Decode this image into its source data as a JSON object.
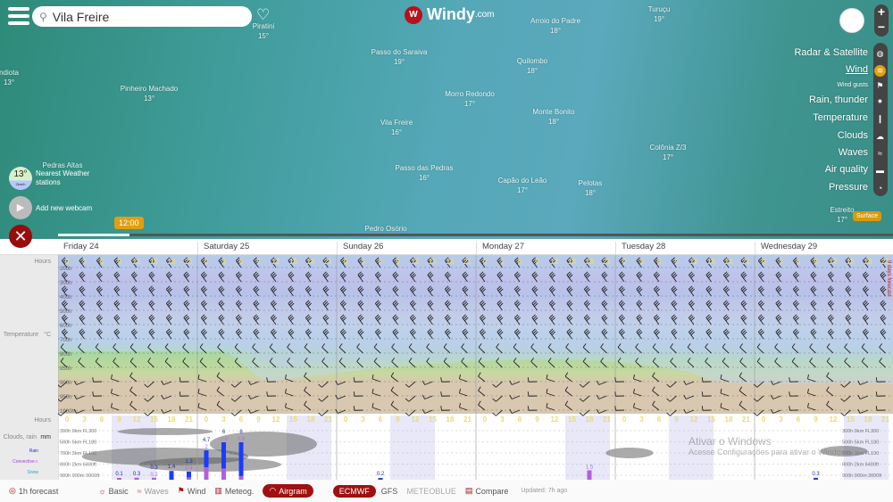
{
  "search": {
    "value": "Vila Freire"
  },
  "logo": {
    "text": "Windy",
    "suffix": ".com"
  },
  "map": {
    "cities": [
      {
        "name": "Piratini",
        "temp": "15°"
      },
      {
        "name": "Arroio do Padre",
        "temp": "18°"
      },
      {
        "name": "Turuçu",
        "temp": "19°"
      },
      {
        "name": "Passo do Saraiva",
        "temp": "19°"
      },
      {
        "name": "Quilombo",
        "temp": "18°"
      },
      {
        "name": "Pinheiro Machado",
        "temp": "13°"
      },
      {
        "name": "Morro Redondo",
        "temp": "17°"
      },
      {
        "name": "Monte Bonito",
        "temp": "18°"
      },
      {
        "name": "Vila Freire",
        "temp": "16°"
      },
      {
        "name": "Colônia Z/3",
        "temp": "17°"
      },
      {
        "name": "Passo das Pedras",
        "temp": "16°"
      },
      {
        "name": "Capão do Leão",
        "temp": "17°"
      },
      {
        "name": "Pelotas",
        "temp": "18°"
      },
      {
        "name": "Pedras Altas",
        "temp": ""
      },
      {
        "name": "Pedro Osório",
        "temp": ""
      },
      {
        "name": "Estreito",
        "temp": "17°"
      },
      {
        "name": "ndiota",
        "temp": "13°"
      }
    ],
    "station": {
      "temp": "13°",
      "wind": "2km/h",
      "label": "Nearest Weather stations"
    },
    "webcam": "Add new webcam",
    "time": "12:00",
    "surface": "Surface"
  },
  "layers": [
    {
      "label": "Radar & Satellite",
      "icon": "globe-icon"
    },
    {
      "label": "Wind",
      "icon": "wind-icon",
      "active": true
    },
    {
      "label": "Wind gusts",
      "icon": "flag-icon"
    },
    {
      "label": "Rain, thunder",
      "icon": "drop-icon"
    },
    {
      "label": "Temperature",
      "icon": "thermometer-icon"
    },
    {
      "label": "Clouds",
      "icon": "cloud-icon"
    },
    {
      "label": "Waves",
      "icon": "waves-icon"
    },
    {
      "label": "Air quality",
      "icon": "car-icon"
    },
    {
      "label": "Pressure",
      "icon": "gauge-icon"
    }
  ],
  "days": [
    "Friday 24",
    "Saturday 25",
    "Sunday 26",
    "Monday 27",
    "Tuesday 28",
    "Wednesday 29"
  ],
  "hours": [
    "0",
    "3",
    "6",
    "9",
    "12",
    "15",
    "18",
    "21"
  ],
  "airgram": {
    "left": {
      "hours": "Hours",
      "temperature": "Temperature",
      "temp_unit": "°C",
      "clouds": "Clouds, rain",
      "clouds_unit": "mm",
      "rain": "Rain",
      "convective": "Convective r.",
      "snow": "Snow"
    },
    "levels": [
      "200h",
      "300h",
      "400h",
      "500h",
      "600h",
      "700h",
      "800h",
      "850h",
      "900h",
      "950h",
      "1000h"
    ],
    "cloud_levels": [
      "300h 9km FL300",
      "500h 5km FL180",
      "700h 3km FL100",
      "800h 2km 6400ft",
      "900h 900m 3000ft"
    ],
    "side_label": "9 days forecast",
    "precip": [
      {
        "slot": 3,
        "rain": 0.1,
        "conv": 0.1,
        "label": "0.1"
      },
      {
        "slot": 4,
        "rain": 0.3,
        "conv": 0.3,
        "label": "0.3"
      },
      {
        "slot": 5,
        "rain": 0.3,
        "conv": 0.2,
        "label": "0.3",
        "conv_label": "0.2"
      },
      {
        "slot": 6,
        "rain": 1.4,
        "conv": 0,
        "label": "1.4"
      },
      {
        "slot": 7,
        "rain": 1.3,
        "conv": 0.4,
        "label": "1.3",
        "conv_label": "0.4"
      },
      {
        "slot": 8,
        "rain": 4.7,
        "conv": 2,
        "label": "4.7",
        "conv_label": "2"
      },
      {
        "slot": 9,
        "rain": 6,
        "conv": 1.8,
        "label": "6",
        "conv_label": "1.8"
      },
      {
        "slot": 10,
        "rain": 6,
        "conv": 0.6,
        "label": "6",
        "conv_label": "0.6"
      },
      {
        "slot": 18,
        "rain": 0.2,
        "conv": 0,
        "label": "0.2"
      },
      {
        "slot": 30,
        "rain": 1.5,
        "conv": 1.5,
        "conv_label": "1.5"
      },
      {
        "slot": 43,
        "rain": 0.3,
        "conv": 0,
        "label": "0.3"
      }
    ]
  },
  "footer": {
    "forecast": "1h forecast",
    "basic": "Basic",
    "waves": "Waves",
    "wind": "Wind",
    "meteog": "Meteog.",
    "airgram": "Airgram",
    "models": [
      "ECMWF",
      "GFS",
      "METEOBLUE"
    ],
    "compare": "Compare",
    "updated": "Updated: 7h ago"
  },
  "watermark": {
    "title": "Ativar o Windows",
    "sub": "Acesse Configurações para ativar o Windows."
  },
  "colors": {
    "accent": "#a01010",
    "rain": "#1a3cff",
    "convective": "#b060e0",
    "wind_active": "#e39e10"
  }
}
